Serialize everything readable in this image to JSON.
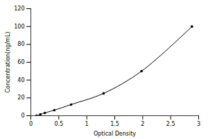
{
  "chart_data": {
    "type": "line",
    "xlabel": "Optical Density",
    "ylabel": "Concentration(ng/mL)",
    "x": [
      0.1,
      0.17,
      0.25,
      0.42,
      0.72,
      1.3,
      1.98,
      2.88
    ],
    "values": [
      0,
      1.56,
      3.12,
      6.25,
      12.5,
      25,
      50,
      100
    ],
    "color": "#000000",
    "marker": "circle",
    "grid": false,
    "xlim": [
      0,
      3
    ],
    "xticks": [
      0,
      0.5,
      1,
      1.5,
      2,
      2.5,
      3
    ],
    "ylim": [
      0,
      120
    ],
    "yticks": [
      0,
      20,
      40,
      60,
      80,
      100,
      120
    ]
  }
}
